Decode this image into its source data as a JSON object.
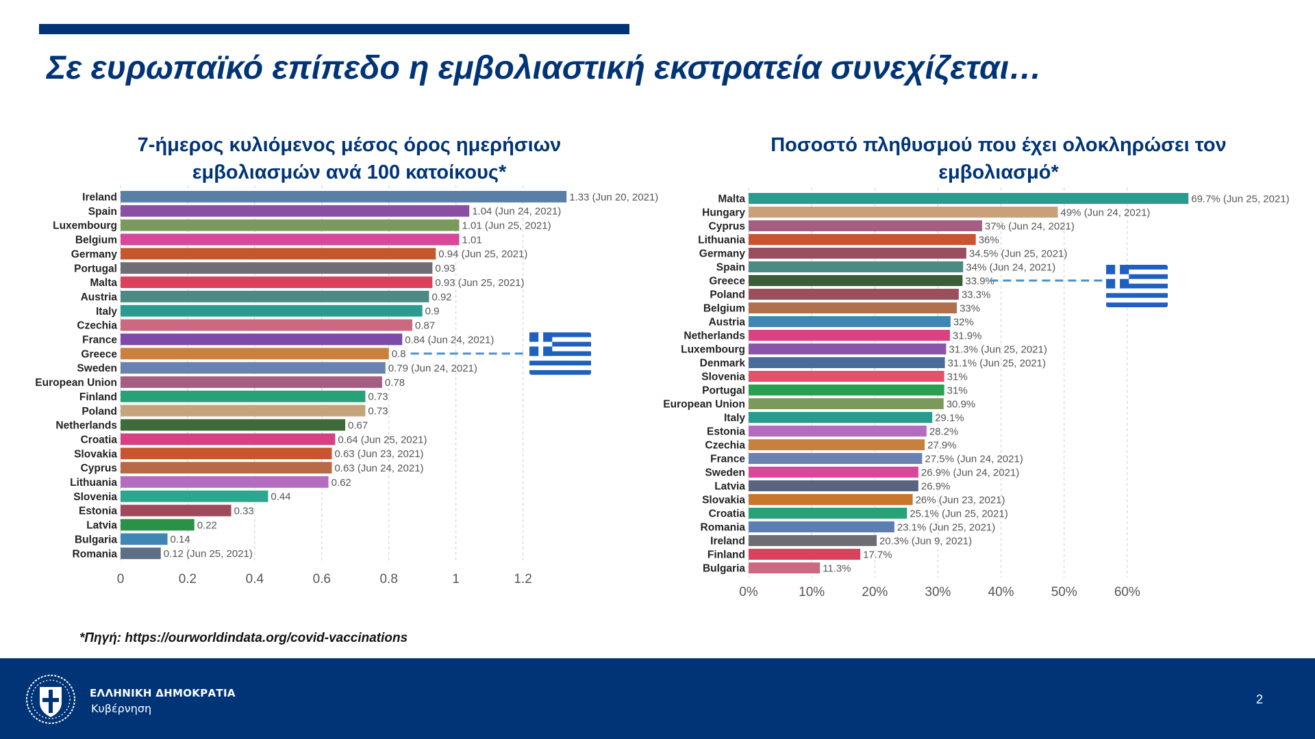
{
  "slide": {
    "title": "Σε ευρωπαϊκό επίπεδο η εμβολιαστική εκστρατεία συνεχίζεται…",
    "source": "*Πηγή: https://ourworldindata.org/covid-vaccinations",
    "page_number": "2"
  },
  "footer": {
    "gov_name": "ΕΛΛΗΝΙΚΗ ΔΗΜΟΚΡΑΤΙΑ",
    "gov_sub": "Κυβέρνηση",
    "brand_color": "#003476"
  },
  "chart_data": [
    {
      "type": "bar",
      "orientation": "horizontal",
      "title_lines": [
        "7-ήμερος κυλιόμενος μέσος όρος ημερήσιων",
        "εμβολιασμών ανά 100 κατοίκους*"
      ],
      "xlim": [
        0,
        1.35
      ],
      "xticks": [
        0,
        0.2,
        0.4,
        0.6,
        0.8,
        1,
        1.2
      ],
      "xtick_labels": [
        "0",
        "0.2",
        "0.4",
        "0.6",
        "0.8",
        "1",
        "1.2"
      ],
      "grid": "vertical dashed",
      "highlight": "Greece",
      "highlight_marker": "flag-of-greece",
      "categories": [
        "Ireland",
        "Spain",
        "Luxembourg",
        "Belgium",
        "Germany",
        "Portugal",
        "Malta",
        "Austria",
        "Italy",
        "Czechia",
        "France",
        "Greece",
        "Sweden",
        "European Union",
        "Finland",
        "Poland",
        "Netherlands",
        "Croatia",
        "Slovakia",
        "Cyprus",
        "Lithuania",
        "Slovenia",
        "Estonia",
        "Latvia",
        "Bulgaria",
        "Romania"
      ],
      "values": [
        1.33,
        1.04,
        1.01,
        1.01,
        0.94,
        0.93,
        0.93,
        0.92,
        0.9,
        0.87,
        0.84,
        0.8,
        0.79,
        0.78,
        0.73,
        0.73,
        0.67,
        0.64,
        0.63,
        0.63,
        0.62,
        0.44,
        0.33,
        0.22,
        0.14,
        0.12
      ],
      "data_labels": [
        "1.33 (Jun 20, 2021)",
        "1.04 (Jun 24, 2021)",
        "1.01 (Jun 25, 2021)",
        "1.01",
        "0.94 (Jun 25, 2021)",
        "0.93",
        "0.93 (Jun 25, 2021)",
        "0.92",
        "0.9",
        "0.87",
        "0.84 (Jun 24, 2021)",
        "0.8",
        "0.79 (Jun 24, 2021)",
        "0.78",
        "0.73",
        "0.73",
        "0.67",
        "0.64 (Jun 25, 2021)",
        "0.63 (Jun 23, 2021)",
        "0.63 (Jun 24, 2021)",
        "0.62",
        "0.44",
        "0.33",
        "0.22",
        "0.14",
        "0.12 (Jun 25, 2021)"
      ],
      "colors": [
        "#5a7fa6",
        "#8a4ea3",
        "#7a9a5c",
        "#d8479a",
        "#c5572f",
        "#6d6d73",
        "#d9415c",
        "#4c8a84",
        "#2a9b8f",
        "#cc6880",
        "#7d4aa8",
        "#c9813d",
        "#6a82b2",
        "#a35e82",
        "#27a178",
        "#c7a37c",
        "#3f6b3a",
        "#d83f84",
        "#c8552d",
        "#b76a45",
        "#b46cc0",
        "#2da58f",
        "#a0485c",
        "#2b9048",
        "#3f86b5",
        "#5f6d86"
      ]
    },
    {
      "type": "bar",
      "orientation": "horizontal",
      "title_lines": [
        "Ποσοστό πληθυσμού που έχει ολοκληρώσει τον",
        "εμβολιασμό*"
      ],
      "xlim": [
        0,
        70
      ],
      "xticks": [
        0,
        10,
        20,
        30,
        40,
        50,
        60
      ],
      "xtick_labels": [
        "0%",
        "10%",
        "20%",
        "30%",
        "40%",
        "50%",
        "60%"
      ],
      "grid": "vertical dashed",
      "highlight": "Greece",
      "highlight_marker": "flag-of-greece",
      "categories": [
        "Malta",
        "Hungary",
        "Cyprus",
        "Lithuania",
        "Germany",
        "Spain",
        "Greece",
        "Poland",
        "Belgium",
        "Austria",
        "Netherlands",
        "Luxembourg",
        "Denmark",
        "Slovenia",
        "Portugal",
        "European Union",
        "Italy",
        "Estonia",
        "Czechia",
        "France",
        "Sweden",
        "Latvia",
        "Slovakia",
        "Croatia",
        "Romania",
        "Ireland",
        "Finland",
        "Bulgaria"
      ],
      "values": [
        69.7,
        49,
        37,
        36,
        34.5,
        34,
        33.9,
        33.3,
        33,
        32,
        31.9,
        31.3,
        31.1,
        31,
        31,
        30.9,
        29.1,
        28.2,
        27.9,
        27.5,
        26.9,
        26.9,
        26,
        25.1,
        23.1,
        20.3,
        17.7,
        11.3
      ],
      "data_labels": [
        "69.7% (Jun 25, 2021)",
        "49% (Jun 24, 2021)",
        "37% (Jun 24, 2021)",
        "36%",
        "34.5% (Jun 25, 2021)",
        "34% (Jun 24, 2021)",
        "33.9%",
        "33.3%",
        "33%",
        "32%",
        "31.9%",
        "31.3% (Jun 25, 2021)",
        "31.1% (Jun 25, 2021)",
        "31%",
        "31%",
        "30.9%",
        "29.1%",
        "28.2%",
        "27.9%",
        "27.5% (Jun 24, 2021)",
        "26.9% (Jun 24, 2021)",
        "26.9%",
        "26% (Jun 23, 2021)",
        "25.1% (Jun 25, 2021)",
        "23.1% (Jun 25, 2021)",
        "20.3% (Jun 9, 2021)",
        "17.7%",
        "11.3%"
      ],
      "colors": [
        "#2a9b8f",
        "#c9a07a",
        "#a35e82",
        "#c8552d",
        "#9a4f60",
        "#4c8a84",
        "#3a5e35",
        "#9a4f5a",
        "#b0704b",
        "#3f86b5",
        "#d8437f",
        "#8a55a8",
        "#4a6c9a",
        "#e0536b",
        "#27a14e",
        "#7a9a5c",
        "#2a9b8f",
        "#b46cc0",
        "#c8813d",
        "#6a82b2",
        "#d8479a",
        "#5a6480",
        "#c8752d",
        "#27a178",
        "#5a7fb0",
        "#6d6d73",
        "#d9415c",
        "#cc6880"
      ]
    }
  ]
}
